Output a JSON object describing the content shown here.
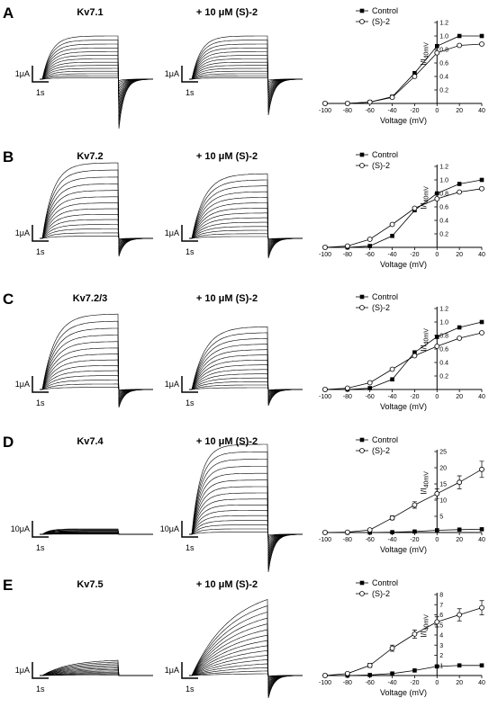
{
  "panels": [
    {
      "letter": "A",
      "title_left": "Kv7.1",
      "title_right": "+ 10 μM (S)-2",
      "current_scale_left": "1μA",
      "current_scale_right": "1μA",
      "time_scale": "1s"
    },
    {
      "letter": "B",
      "title_left": "Kv7.2",
      "title_right": "+ 10 μM (S)-2",
      "current_scale_left": "1μA",
      "current_scale_right": "1μA",
      "time_scale": "1s"
    },
    {
      "letter": "C",
      "title_left": "Kv7.2/3",
      "title_right": "+ 10 μM (S)-2",
      "current_scale_left": "1μA",
      "current_scale_right": "1μA",
      "time_scale": "1s"
    },
    {
      "letter": "D",
      "title_left": "Kv7.4",
      "title_right": "+ 10 μM (S)-2",
      "current_scale_left": "10μA",
      "current_scale_right": "10μA",
      "time_scale": "1s"
    },
    {
      "letter": "E",
      "title_left": "Kv7.5",
      "title_right": "+ 10 μM (S)-2",
      "current_scale_left": "1μA",
      "current_scale_right": "1μA",
      "time_scale": "1s"
    }
  ],
  "chart_data": [
    {
      "type": "line",
      "xlabel": "Voltage (mV)",
      "ylabel_main": "I/I",
      "ylabel_sub": "40mV",
      "xlim": [
        -100,
        40
      ],
      "ylim": [
        0,
        1.2
      ],
      "xticks": [
        -100,
        -80,
        -60,
        -40,
        -20,
        0,
        20,
        40
      ],
      "yticks": [
        "0.2",
        "0.4",
        "0.6",
        "0.8",
        "1.0",
        "1.2"
      ],
      "legend_position": "top-left",
      "x": [
        -100,
        -80,
        -60,
        -40,
        -20,
        0,
        20,
        40
      ],
      "series": [
        {
          "name": "Control",
          "marker": "filled-square",
          "values": [
            0.0,
            0.0,
            0.02,
            0.1,
            0.45,
            0.85,
            1.0,
            1.0
          ]
        },
        {
          "name": "(S)-2",
          "marker": "open-circle",
          "values": [
            0.0,
            0.0,
            0.02,
            0.09,
            0.4,
            0.75,
            0.86,
            0.88
          ]
        }
      ]
    },
    {
      "type": "line",
      "xlabel": "Voltage (mV)",
      "ylabel_main": "I/I",
      "ylabel_sub": "40mV",
      "xlim": [
        -100,
        40
      ],
      "ylim": [
        0,
        1.2
      ],
      "xticks": [
        -100,
        -80,
        -60,
        -40,
        -20,
        0,
        20,
        40
      ],
      "yticks": [
        "0.2",
        "0.4",
        "0.6",
        "0.8",
        "1.0",
        "1.2"
      ],
      "legend_position": "top-left",
      "x": [
        -100,
        -80,
        -60,
        -40,
        -20,
        0,
        20,
        40
      ],
      "series": [
        {
          "name": "Control",
          "marker": "filled-square",
          "values": [
            0.0,
            0.0,
            0.02,
            0.17,
            0.55,
            0.8,
            0.94,
            1.0
          ]
        },
        {
          "name": "(S)-2",
          "marker": "open-circle",
          "values": [
            0.0,
            0.02,
            0.12,
            0.34,
            0.58,
            0.72,
            0.82,
            0.87
          ]
        }
      ]
    },
    {
      "type": "line",
      "xlabel": "Voltage (mV)",
      "ylabel_main": "I/I",
      "ylabel_sub": "40mV",
      "xlim": [
        -100,
        40
      ],
      "ylim": [
        0,
        1.2
      ],
      "xticks": [
        -100,
        -80,
        -60,
        -40,
        -20,
        0,
        20,
        40
      ],
      "yticks": [
        "0.2",
        "0.4",
        "0.6",
        "0.8",
        "1.0",
        "1.2"
      ],
      "legend_position": "top-left",
      "x": [
        -100,
        -80,
        -60,
        -40,
        -20,
        0,
        20,
        40
      ],
      "series": [
        {
          "name": "Control",
          "marker": "filled-square",
          "values": [
            0.0,
            0.0,
            0.02,
            0.15,
            0.55,
            0.78,
            0.92,
            1.0
          ]
        },
        {
          "name": "(S)-2",
          "marker": "open-circle",
          "values": [
            0.0,
            0.02,
            0.1,
            0.3,
            0.5,
            0.64,
            0.76,
            0.84
          ]
        }
      ]
    },
    {
      "type": "line",
      "xlabel": "Voltage (mV)",
      "ylabel_main": "I/I",
      "ylabel_sub": "40mV",
      "xlim": [
        -100,
        40
      ],
      "ylim": [
        0,
        25
      ],
      "xticks": [
        -100,
        -80,
        -60,
        -40,
        -20,
        0,
        20,
        40
      ],
      "yticks": [
        "5",
        "10",
        "15",
        "20",
        "25"
      ],
      "legend_position": "top-left",
      "x": [
        -100,
        -80,
        -60,
        -40,
        -20,
        0,
        20,
        40
      ],
      "series": [
        {
          "name": "Control",
          "marker": "filled-square",
          "values": [
            0.0,
            0.0,
            0.0,
            0.1,
            0.3,
            0.7,
            0.9,
            1.0
          ]
        },
        {
          "name": "(S)-2",
          "marker": "open-circle",
          "values": [
            0.0,
            0.1,
            0.8,
            4.5,
            8.5,
            12.0,
            15.5,
            19.5
          ],
          "errors": [
            0.0,
            0.1,
            0.3,
            0.6,
            1.0,
            1.5,
            2.0,
            2.5
          ]
        }
      ]
    },
    {
      "type": "line",
      "xlabel": "Voltage (mV)",
      "ylabel_main": "I/I",
      "ylabel_sub": "40mV",
      "xlim": [
        -100,
        40
      ],
      "ylim": [
        0,
        8
      ],
      "xticks": [
        -100,
        -80,
        -60,
        -40,
        -20,
        0,
        20,
        40
      ],
      "yticks": [
        "1",
        "2",
        "3",
        "4",
        "5",
        "6",
        "7",
        "8"
      ],
      "legend_position": "top-left",
      "x": [
        -100,
        -80,
        -60,
        -40,
        -20,
        0,
        20,
        40
      ],
      "series": [
        {
          "name": "Control",
          "marker": "filled-square",
          "values": [
            0.0,
            0.0,
            0.05,
            0.2,
            0.5,
            0.9,
            1.0,
            1.0
          ]
        },
        {
          "name": "(S)-2",
          "marker": "open-circle",
          "values": [
            0.0,
            0.2,
            1.0,
            2.7,
            4.1,
            5.3,
            6.0,
            6.7
          ],
          "errors": [
            0.0,
            0.1,
            0.2,
            0.3,
            0.4,
            0.5,
            0.6,
            0.7
          ]
        }
      ]
    }
  ]
}
